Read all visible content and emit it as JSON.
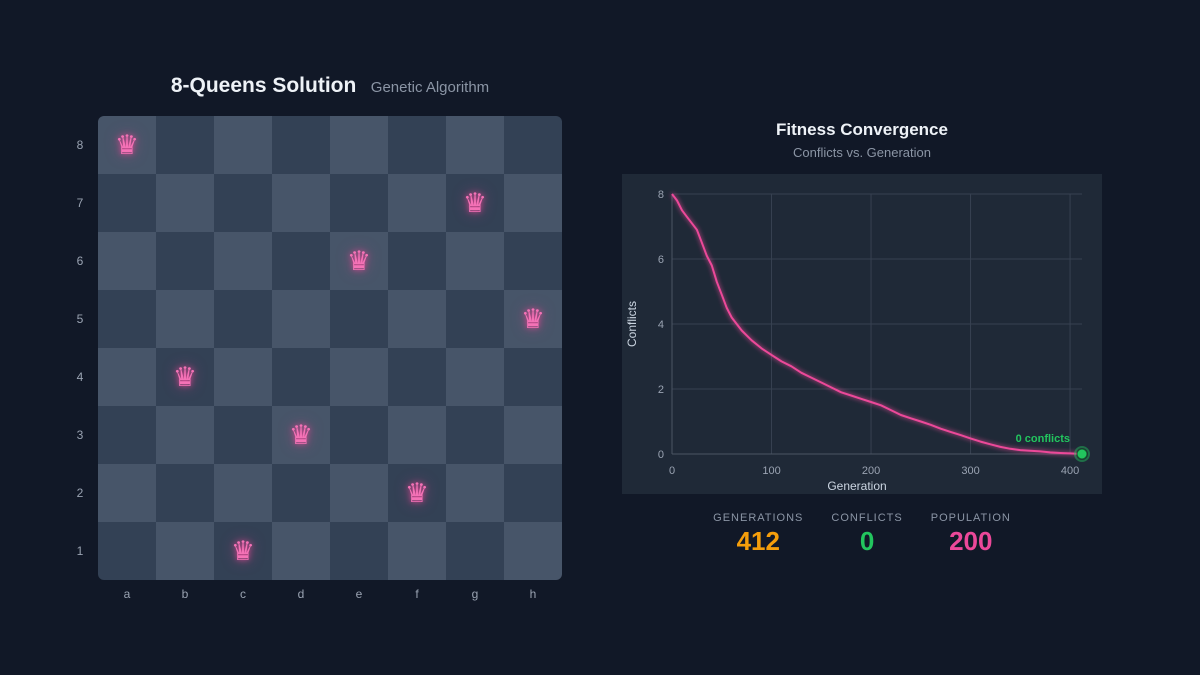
{
  "board": {
    "title": "8-Queens Solution",
    "subtitle": "Genetic Algorithm",
    "files": [
      "a",
      "b",
      "c",
      "d",
      "e",
      "f",
      "g",
      "h"
    ],
    "ranks": [
      "8",
      "7",
      "6",
      "5",
      "4",
      "3",
      "2",
      "1"
    ],
    "queens": [
      {
        "file": "a",
        "rank": "8"
      },
      {
        "file": "g",
        "rank": "7"
      },
      {
        "file": "e",
        "rank": "6"
      },
      {
        "file": "h",
        "rank": "5"
      },
      {
        "file": "b",
        "rank": "4"
      },
      {
        "file": "d",
        "rank": "3"
      },
      {
        "file": "f",
        "rank": "2"
      },
      {
        "file": "c",
        "rank": "1"
      }
    ],
    "queen_icon": "queen-icon",
    "queen_glyph": "♛",
    "colors": {
      "light": "#475569",
      "dark": "#334155",
      "queen": "#ec4899"
    }
  },
  "chart": {
    "title": "Fitness Convergence",
    "subtitle": "Conflicts vs. Generation"
  },
  "chart_data": {
    "type": "line",
    "xlabel": "Generation",
    "ylabel": "Conflicts",
    "xlim": [
      0,
      412
    ],
    "ylim": [
      0,
      8
    ],
    "xticks": [
      0,
      100,
      200,
      300,
      400
    ],
    "yticks": [
      0,
      2,
      4,
      6,
      8
    ],
    "grid": true,
    "annotation": {
      "text": "0 conflicts",
      "x": 412,
      "y": 0
    },
    "series": [
      {
        "color": "#ec4899",
        "x": [
          0,
          5,
          10,
          15,
          20,
          25,
          30,
          35,
          40,
          45,
          50,
          55,
          60,
          65,
          70,
          80,
          90,
          100,
          110,
          120,
          130,
          140,
          150,
          160,
          170,
          180,
          190,
          200,
          210,
          220,
          230,
          240,
          250,
          260,
          270,
          280,
          290,
          300,
          310,
          320,
          330,
          340,
          350,
          360,
          370,
          380,
          390,
          400,
          412
        ],
        "y": [
          8.0,
          7.8,
          7.5,
          7.3,
          7.1,
          6.9,
          6.5,
          6.1,
          5.8,
          5.3,
          4.9,
          4.5,
          4.2,
          4.0,
          3.8,
          3.5,
          3.25,
          3.05,
          2.85,
          2.7,
          2.5,
          2.35,
          2.2,
          2.05,
          1.9,
          1.8,
          1.7,
          1.6,
          1.5,
          1.35,
          1.2,
          1.1,
          1.0,
          0.9,
          0.78,
          0.68,
          0.58,
          0.48,
          0.38,
          0.3,
          0.22,
          0.16,
          0.12,
          0.1,
          0.08,
          0.05,
          0.03,
          0.02,
          0.0
        ]
      }
    ]
  },
  "stats": [
    {
      "label": "GENERATIONS",
      "value": "412",
      "color": "#f59e0b"
    },
    {
      "label": "CONFLICTS",
      "value": "0",
      "color": "#22c55e"
    },
    {
      "label": "POPULATION",
      "value": "200",
      "color": "#ec4899"
    }
  ]
}
